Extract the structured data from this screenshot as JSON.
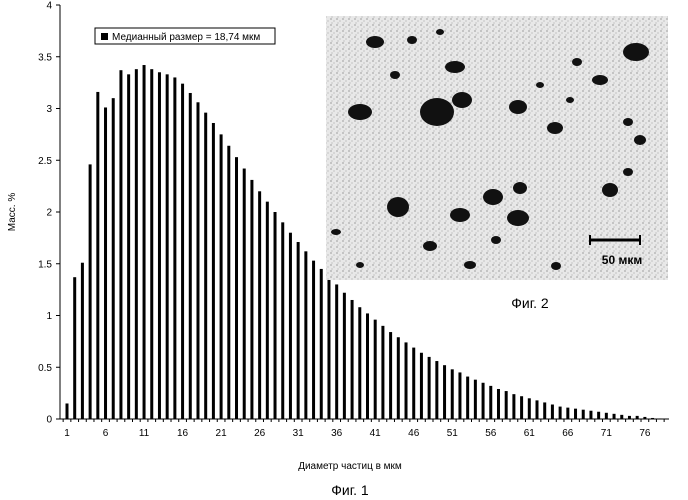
{
  "chart_data": {
    "type": "bar",
    "title": "",
    "legend": {
      "label": "Медианный размер = 18,74 мкм",
      "placement": "top-left"
    },
    "xlabel": "Диаметр частиц в мкм",
    "ylabel": "Масс. %",
    "ylim": [
      0,
      4
    ],
    "yticks": [
      "0",
      "0.5",
      "1",
      "1.5",
      "2",
      "2.5",
      "3",
      "3.5",
      "4"
    ],
    "xticks": [
      "1",
      "6",
      "11",
      "16",
      "21",
      "26",
      "31",
      "36",
      "41",
      "46",
      "51",
      "56",
      "61",
      "66",
      "71",
      "76"
    ],
    "grid": false,
    "x": [
      1,
      2,
      3,
      4,
      5,
      6,
      7,
      8,
      9,
      10,
      11,
      12,
      13,
      14,
      15,
      16,
      17,
      18,
      19,
      20,
      21,
      22,
      23,
      24,
      25,
      26,
      27,
      28,
      29,
      30,
      31,
      32,
      33,
      34,
      35,
      36,
      37,
      38,
      39,
      40,
      41,
      42,
      43,
      44,
      45,
      46,
      47,
      48,
      49,
      50,
      51,
      52,
      53,
      54,
      55,
      56,
      57,
      58,
      59,
      60,
      61,
      62,
      63,
      64,
      65,
      66,
      67,
      68,
      69,
      70,
      71,
      72,
      73,
      74,
      75,
      76,
      77,
      78
    ],
    "values": [
      0.15,
      1.37,
      1.51,
      2.46,
      3.16,
      3.01,
      3.1,
      3.37,
      3.33,
      3.38,
      3.42,
      3.38,
      3.35,
      3.33,
      3.3,
      3.24,
      3.15,
      3.06,
      2.96,
      2.86,
      2.75,
      2.64,
      2.53,
      2.42,
      2.31,
      2.2,
      2.1,
      2.0,
      1.9,
      1.8,
      1.71,
      1.62,
      1.53,
      1.45,
      1.37,
      1.3,
      1.22,
      1.15,
      1.08,
      1.02,
      0.96,
      0.9,
      0.84,
      0.79,
      0.74,
      0.69,
      0.64,
      0.6,
      0.56,
      0.52,
      0.48,
      0.45,
      0.41,
      0.38,
      0.35,
      0.32,
      0.29,
      0.27,
      0.24,
      0.22,
      0.2,
      0.18,
      0.16,
      0.14,
      0.12,
      0.11,
      0.1,
      0.09,
      0.08,
      0.07,
      0.06,
      0.05,
      0.04,
      0.03,
      0.03,
      0.02,
      0.01,
      0.005
    ],
    "bar_color": "#000000"
  },
  "inset": {
    "label": "Фиг. 2",
    "scale_bar_label": "50 мкм"
  },
  "figure_caption": "Фиг. 1"
}
